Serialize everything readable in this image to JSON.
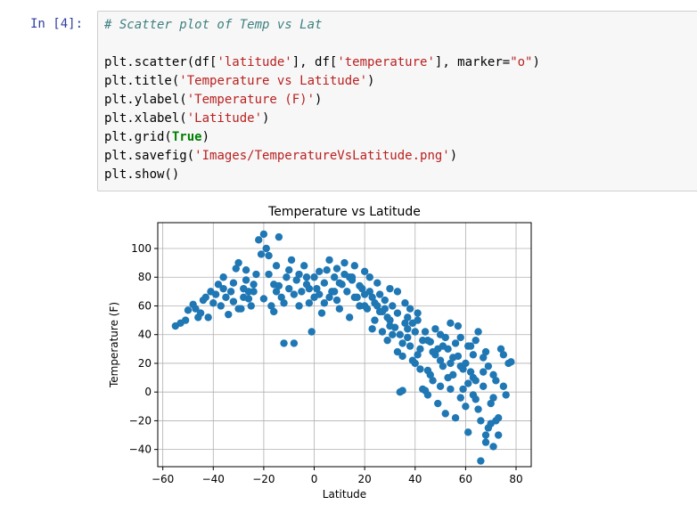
{
  "cell": {
    "prompt": "In [4]:",
    "comment": "# Scatter plot of Temp vs Lat",
    "line1": {
      "fn": "plt.scatter(df[",
      "s1": "'latitude'",
      "mid": "], df[",
      "s2": "'temperature'",
      "mid2": "], marker=",
      "s3": "\"o\"",
      "end": ")"
    },
    "line2": {
      "fn": "plt.title(",
      "s": "'Temperature vs Latitude'",
      "end": ")"
    },
    "line3": {
      "fn": "plt.ylabel(",
      "s": "'Temperature (F)'",
      "end": ")"
    },
    "line4": {
      "fn": "plt.xlabel(",
      "s": "'Latitude'",
      "end": ")"
    },
    "line5": {
      "fn": "plt.grid(",
      "kw": "True",
      "end": ")"
    },
    "line6": {
      "fn": "plt.savefig(",
      "s": "'Images/TemperatureVsLatitude.png'",
      "end": ")"
    },
    "line7": "plt.show()"
  },
  "chart_data": {
    "type": "scatter",
    "title": "Temperature vs Latitude",
    "xlabel": "Latitude",
    "ylabel": "Temperature (F)",
    "xlim": [
      -62,
      86
    ],
    "ylim": [
      -52,
      118
    ],
    "xticks": [
      -60,
      -40,
      -20,
      0,
      20,
      40,
      60,
      80
    ],
    "xtick_labels": [
      "−60",
      "−40",
      "−20",
      "0",
      "20",
      "40",
      "60",
      "80"
    ],
    "yticks": [
      -40,
      -20,
      0,
      20,
      40,
      60,
      80,
      100
    ],
    "ytick_labels": [
      "−40",
      "−20",
      "0",
      "20",
      "40",
      "60",
      "80",
      "100"
    ],
    "grid": true,
    "color": "#1f77b4",
    "points": [
      [
        -55,
        46
      ],
      [
        -53,
        48
      ],
      [
        -51,
        50
      ],
      [
        -47,
        58
      ],
      [
        -46,
        52
      ],
      [
        -45,
        55
      ],
      [
        -43,
        66
      ],
      [
        -42,
        52
      ],
      [
        -40,
        62
      ],
      [
        -39,
        68
      ],
      [
        -38,
        75
      ],
      [
        -37,
        60
      ],
      [
        -36,
        72
      ],
      [
        -35,
        66
      ],
      [
        -34,
        54
      ],
      [
        -33,
        70
      ],
      [
        -32,
        63
      ],
      [
        -31,
        86
      ],
      [
        -30,
        90
      ],
      [
        -29,
        58
      ],
      [
        -28,
        72
      ],
      [
        -27,
        78
      ],
      [
        -26,
        65
      ],
      [
        -25,
        60
      ],
      [
        -24,
        70
      ],
      [
        -23,
        82
      ],
      [
        -22,
        106
      ],
      [
        -21,
        96
      ],
      [
        -20,
        110
      ],
      [
        -19,
        100
      ],
      [
        -18,
        82
      ],
      [
        -17,
        60
      ],
      [
        -16,
        75
      ],
      [
        -15,
        70
      ],
      [
        -14,
        108
      ],
      [
        -13,
        66
      ],
      [
        -12,
        34
      ],
      [
        -11,
        80
      ],
      [
        -10,
        85
      ],
      [
        -9,
        92
      ],
      [
        -8,
        34
      ],
      [
        -7,
        78
      ],
      [
        -6,
        60
      ],
      [
        -5,
        70
      ],
      [
        -4,
        88
      ],
      [
        -3,
        75
      ],
      [
        -2,
        62
      ],
      [
        -1,
        42
      ],
      [
        0,
        80
      ],
      [
        1,
        72
      ],
      [
        2,
        68
      ],
      [
        3,
        55
      ],
      [
        4,
        76
      ],
      [
        5,
        85
      ],
      [
        6,
        92
      ],
      [
        7,
        70
      ],
      [
        8,
        80
      ],
      [
        9,
        64
      ],
      [
        10,
        58
      ],
      [
        11,
        75
      ],
      [
        12,
        82
      ],
      [
        13,
        70
      ],
      [
        14,
        52
      ],
      [
        15,
        78
      ],
      [
        16,
        88
      ],
      [
        17,
        66
      ],
      [
        18,
        60
      ],
      [
        19,
        72
      ],
      [
        20,
        84
      ],
      [
        21,
        58
      ],
      [
        22,
        70
      ],
      [
        23,
        44
      ],
      [
        24,
        62
      ],
      [
        25,
        76
      ],
      [
        26,
        56
      ],
      [
        27,
        42
      ],
      [
        28,
        64
      ],
      [
        29,
        36
      ],
      [
        30,
        50
      ],
      [
        31,
        60
      ],
      [
        32,
        45
      ],
      [
        33,
        55
      ],
      [
        34,
        40
      ],
      [
        35,
        25
      ],
      [
        36,
        62
      ],
      [
        37,
        38
      ],
      [
        38,
        32
      ],
      [
        39,
        48
      ],
      [
        40,
        20
      ],
      [
        41,
        55
      ],
      [
        42,
        30
      ],
      [
        43,
        2
      ],
      [
        44,
        42
      ],
      [
        45,
        15
      ],
      [
        46,
        35
      ],
      [
        47,
        8
      ],
      [
        48,
        26
      ],
      [
        49,
        -8
      ],
      [
        50,
        40
      ],
      [
        51,
        18
      ],
      [
        52,
        -15
      ],
      [
        53,
        30
      ],
      [
        54,
        48
      ],
      [
        55,
        12
      ],
      [
        56,
        -18
      ],
      [
        57,
        25
      ],
      [
        58,
        38
      ],
      [
        59,
        2
      ],
      [
        60,
        20
      ],
      [
        61,
        -28
      ],
      [
        62,
        32
      ],
      [
        63,
        10
      ],
      [
        64,
        -5
      ],
      [
        65,
        42
      ],
      [
        66,
        -48
      ],
      [
        67,
        24
      ],
      [
        68,
        -35
      ],
      [
        69,
        18
      ],
      [
        70,
        -22
      ],
      [
        71,
        -38
      ],
      [
        72,
        8
      ],
      [
        73,
        -18
      ],
      [
        74,
        30
      ],
      [
        75,
        4
      ],
      [
        76,
        -2
      ],
      [
        77,
        20
      ],
      [
        78,
        21
      ],
      [
        34,
        0
      ],
      [
        35,
        1
      ],
      [
        44,
        1
      ],
      [
        -44,
        64
      ],
      [
        -41,
        70
      ],
      [
        -36,
        80
      ],
      [
        -30,
        58
      ],
      [
        -27,
        85
      ],
      [
        -24,
        75
      ],
      [
        -18,
        95
      ],
      [
        -15,
        88
      ],
      [
        -12,
        62
      ],
      [
        -6,
        82
      ],
      [
        -3,
        80
      ],
      [
        2,
        84
      ],
      [
        6,
        66
      ],
      [
        9,
        86
      ],
      [
        12,
        90
      ],
      [
        15,
        80
      ],
      [
        18,
        74
      ],
      [
        22,
        80
      ],
      [
        26,
        68
      ],
      [
        30,
        46
      ],
      [
        33,
        70
      ],
      [
        37,
        52
      ],
      [
        40,
        42
      ],
      [
        43,
        36
      ],
      [
        47,
        28
      ],
      [
        50,
        22
      ],
      [
        53,
        10
      ],
      [
        56,
        34
      ],
      [
        58,
        18
      ],
      [
        61,
        6
      ],
      [
        63,
        26
      ],
      [
        65,
        -12
      ],
      [
        67,
        4
      ],
      [
        69,
        -25
      ],
      [
        71,
        12
      ],
      [
        73,
        -30
      ],
      [
        36,
        48
      ],
      [
        39,
        22
      ],
      [
        42,
        16
      ],
      [
        45,
        -2
      ],
      [
        48,
        44
      ],
      [
        51,
        32
      ],
      [
        54,
        2
      ],
      [
        57,
        46
      ],
      [
        60,
        -10
      ],
      [
        62,
        14
      ],
      [
        64,
        36
      ],
      [
        66,
        -20
      ],
      [
        68,
        28
      ],
      [
        70,
        -8
      ],
      [
        -32,
        76
      ],
      [
        -26,
        70
      ],
      [
        -20,
        65
      ],
      [
        -14,
        74
      ],
      [
        -8,
        68
      ],
      [
        -2,
        72
      ],
      [
        4,
        62
      ],
      [
        10,
        76
      ],
      [
        16,
        66
      ],
      [
        20,
        60
      ],
      [
        24,
        50
      ],
      [
        28,
        58
      ],
      [
        31,
        40
      ],
      [
        35,
        34
      ],
      [
        38,
        58
      ],
      [
        41,
        26
      ],
      [
        46,
        12
      ],
      [
        49,
        30
      ],
      [
        52,
        38
      ],
      [
        55,
        24
      ],
      [
        59,
        16
      ],
      [
        63,
        -2
      ],
      [
        67,
        14
      ],
      [
        72,
        -20
      ],
      [
        -50,
        57
      ],
      [
        -48,
        61
      ],
      [
        -28,
        66
      ],
      [
        -16,
        56
      ],
      [
        -10,
        72
      ],
      [
        0,
        66
      ],
      [
        8,
        70
      ],
      [
        14,
        80
      ],
      [
        20,
        68
      ],
      [
        25,
        60
      ],
      [
        29,
        52
      ],
      [
        33,
        28
      ],
      [
        37,
        44
      ],
      [
        41,
        50
      ],
      [
        45,
        36
      ],
      [
        50,
        4
      ],
      [
        54,
        20
      ],
      [
        58,
        -4
      ],
      [
        61,
        32
      ],
      [
        64,
        8
      ],
      [
        68,
        -30
      ],
      [
        71,
        -4
      ],
      [
        75,
        26
      ],
      [
        30,
        72
      ],
      [
        27,
        56
      ],
      [
        23,
        66
      ]
    ]
  }
}
